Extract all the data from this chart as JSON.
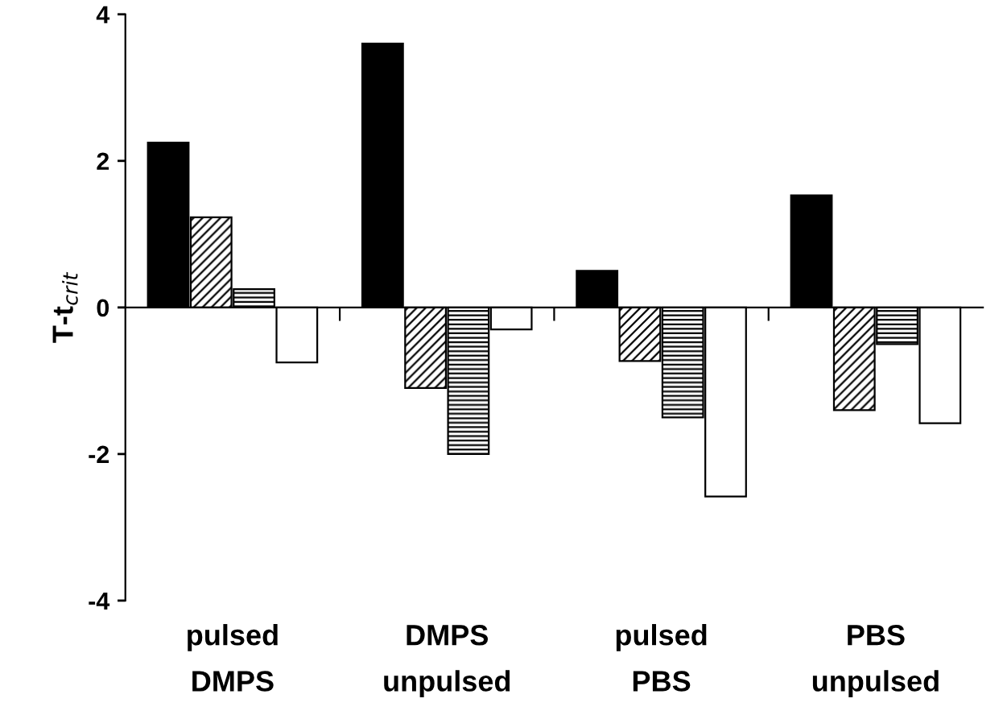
{
  "chart_data": {
    "type": "bar",
    "ylabel": "T-t$_{crit}$",
    "categories": [
      "pulsed\nDMPS",
      "DMPS\nunpulsed",
      "pulsed\nPBS",
      "PBS\nunpulsed"
    ],
    "series": [
      {
        "color": "#000000",
        "values": [
          2.25,
          3.6,
          0.5,
          1.53
        ]
      },
      {
        "color": "#000000",
        "values": [
          1.23,
          -1.1,
          -0.73,
          -1.4
        ]
      },
      {
        "color": "#000000",
        "values": [
          0.25,
          -2.0,
          -1.5,
          -0.5
        ]
      },
      {
        "color": "#ffffff",
        "values": [
          -0.75,
          -0.3,
          -2.58,
          -1.58
        ]
      }
    ],
    "ylim": [
      -4,
      4
    ],
    "yticks": [
      -4,
      -2,
      0,
      2,
      4
    ]
  }
}
